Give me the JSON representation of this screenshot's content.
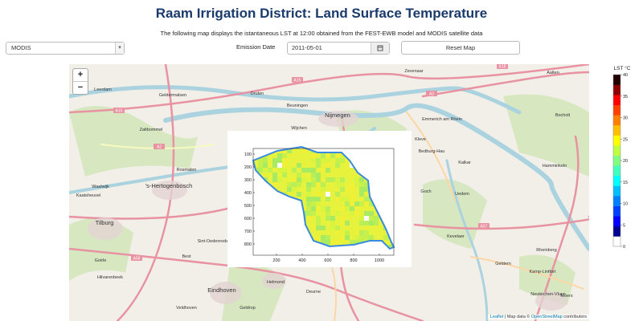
{
  "header": {
    "title": "Raam Irrigation District: Land Surface Temperature",
    "subtitle": "The following map displays the istantaneous LST at 12:00 obtained from the FEST-EWB model and MODIS satellite data"
  },
  "controls": {
    "source_select": "MODIS",
    "date_label": "Emission Date",
    "date_value": "2011-05-01",
    "reset_button": "Reset Map"
  },
  "map": {
    "zoom_in": "+",
    "zoom_out": "−",
    "places": [
      "Leerdam",
      "Geldermalsen",
      "Druten",
      "Beuningen",
      "Nijmegen",
      "Zaltbommel",
      "Wijchen",
      "Kleve",
      "Emmerich am Rhein",
      "Bedburg-Hau",
      "Kalkar",
      "Rosmalen",
      "Waalwijk",
      "'s-Hertogenbosch",
      "Kaatsheuvel",
      "Goch",
      "Uedem",
      "Tilburg",
      "Kevelaer",
      "Sint-Oedenrode",
      "Best",
      "Helmond",
      "Eindhoven",
      "Veldhoven",
      "Geldrop",
      "Deurne",
      "Moers",
      "Rheinberg",
      "Kamp-Lintfort",
      "Neukirchen-Vluyn",
      "Hamminkeln",
      "Bocholt",
      "Aalten",
      "Zevenaar",
      "Geldern",
      "Hilvarenbeek",
      "Goirle"
    ],
    "roads": [
      "A15",
      "A15",
      "A3",
      "A18",
      "A57",
      "A58",
      "A2"
    ],
    "attribution": {
      "leaflet": "Leaflet",
      "text": "| Map data ©",
      "osm": "OpenStreetMap",
      "contributors": "contributors"
    }
  },
  "inset": {
    "xticks": [
      200,
      400,
      600,
      800,
      1000
    ],
    "yticks": [
      100,
      200,
      300,
      400,
      500,
      600,
      700,
      800
    ]
  },
  "legend": {
    "title": "LST °C",
    "ticks": [
      40,
      35,
      30,
      25,
      20,
      15,
      10,
      5,
      0
    ]
  }
}
